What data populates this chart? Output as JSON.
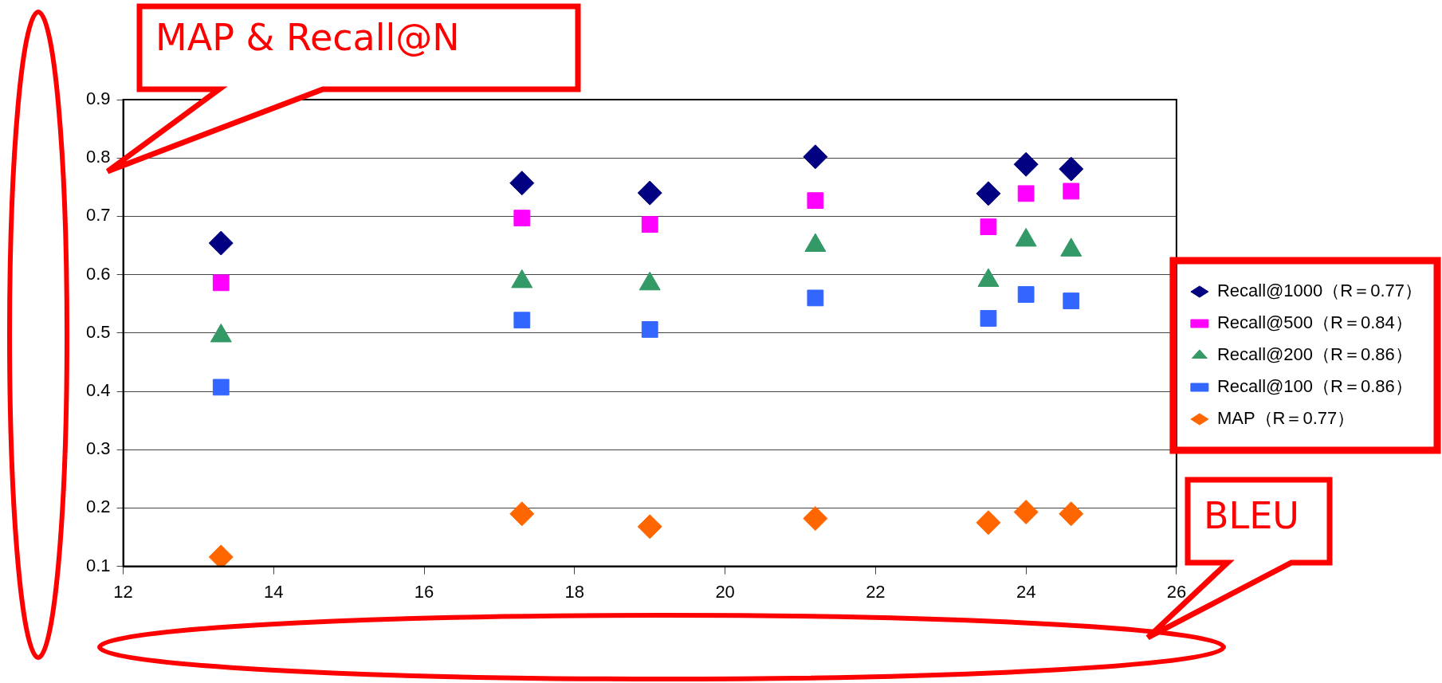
{
  "chart_data": {
    "type": "scatter",
    "xlabel": "BLEU",
    "ylabel": "MAP & Recall@N",
    "x": [
      13.3,
      17.3,
      19.0,
      21.2,
      23.5,
      24.0,
      24.6
    ],
    "series": [
      {
        "name": "Recall@1000（R＝0.77）",
        "color": "#000080",
        "marker": "diamond",
        "values": [
          0.654,
          0.757,
          0.74,
          0.802,
          0.739,
          0.789,
          0.781
        ]
      },
      {
        "name": "Recall@500（R＝0.84）",
        "color": "#ff00ff",
        "marker": "square",
        "values": [
          0.586,
          0.697,
          0.686,
          0.727,
          0.682,
          0.739,
          0.743
        ]
      },
      {
        "name": "Recall@200（R＝0.86）",
        "color": "#339966",
        "marker": "triangle",
        "values": [
          0.495,
          0.588,
          0.584,
          0.65,
          0.59,
          0.659,
          0.642
        ]
      },
      {
        "name": "Recall@100（R＝0.86）",
        "color": "#3366ff",
        "marker": "square",
        "values": [
          0.407,
          0.522,
          0.506,
          0.56,
          0.525,
          0.566,
          0.555
        ]
      },
      {
        "name": "MAP（R＝0.77）",
        "color": "#ff6600",
        "marker": "diamond",
        "values": [
          0.116,
          0.19,
          0.168,
          0.182,
          0.175,
          0.193,
          0.19
        ]
      }
    ],
    "xlim": [
      12,
      26
    ],
    "xticks": [
      12,
      14,
      16,
      18,
      20,
      22,
      24,
      26
    ],
    "ylim": [
      0.1,
      0.9
    ],
    "yticks": [
      0.1,
      0.2,
      0.3,
      0.4,
      0.5,
      0.6,
      0.7,
      0.8,
      0.9
    ],
    "grid": "y",
    "legend": "right"
  }
}
